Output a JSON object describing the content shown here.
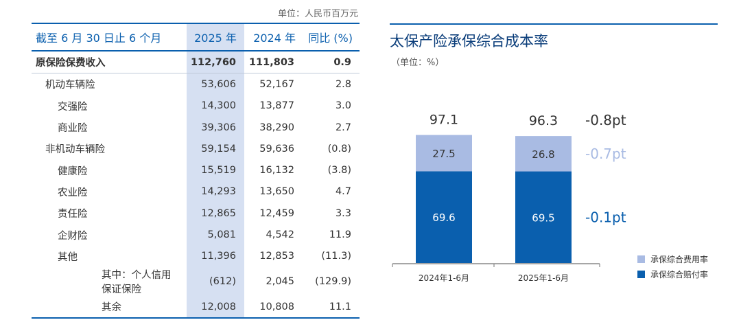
{
  "left_table": {
    "unit": "单位：人民币百万元",
    "header": {
      "name": "截至 6 月 30 日止 6 个月",
      "y2025": "2025 年",
      "y2024": "2024 年",
      "yoy": "同比 (%)"
    },
    "rows": [
      {
        "name": "原保险保费收入",
        "v2025": "112,760",
        "v2024": "111,803",
        "yoy": "0.9",
        "level": 0
      },
      {
        "name": "机动车辆险",
        "v2025": "53,606",
        "v2024": "52,167",
        "yoy": "2.8",
        "level": 1
      },
      {
        "name": "交强险",
        "v2025": "14,300",
        "v2024": "13,877",
        "yoy": "3.0",
        "level": 2
      },
      {
        "name": "商业险",
        "v2025": "39,306",
        "v2024": "38,290",
        "yoy": "2.7",
        "level": 2
      },
      {
        "name": "非机动车辆险",
        "v2025": "59,154",
        "v2024": "59,636",
        "yoy": "(0.8)",
        "level": 1
      },
      {
        "name": "健康险",
        "v2025": "15,519",
        "v2024": "16,132",
        "yoy": "(3.8)",
        "level": 2
      },
      {
        "name": "农业险",
        "v2025": "14,293",
        "v2024": "13,650",
        "yoy": "4.7",
        "level": 2
      },
      {
        "name": "责任险",
        "v2025": "12,865",
        "v2024": "12,459",
        "yoy": "3.3",
        "level": 2
      },
      {
        "name": "企财险",
        "v2025": "5,081",
        "v2024": "4,542",
        "yoy": "11.9",
        "level": 2
      },
      {
        "name": "其他",
        "v2025": "11,396",
        "v2024": "12,853",
        "yoy": "(11.3)",
        "level": 2
      },
      {
        "name": "其中：个人信用保证保险",
        "v2025": "(612)",
        "v2024": "2,045",
        "yoy": "(129.9)",
        "level": 3
      },
      {
        "name": "其余",
        "v2025": "12,008",
        "v2024": "10,808",
        "yoy": "11.1",
        "level": 4
      }
    ]
  },
  "chart_data": {
    "type": "bar",
    "stacked": true,
    "title": "太保产险承保综合成本率",
    "unit": "（单位：%）",
    "categories": [
      "2024年1-6月",
      "2025年1-6月"
    ],
    "series": [
      {
        "name": "承保综合赔付率",
        "values": [
          69.6,
          69.5
        ],
        "color": "#0A5FAE",
        "label_color": "#ffffff"
      },
      {
        "name": "承保综合费用率",
        "values": [
          27.5,
          26.8
        ],
        "color": "#A9BBE3",
        "label_color": "#333333"
      }
    ],
    "totals": [
      97.1,
      96.3
    ],
    "annotations": [
      {
        "text": "-0.8pt",
        "color": "#333333",
        "ref": "total"
      },
      {
        "text": "-0.7pt",
        "color": "#A9BBE3",
        "ref": "承保综合费用率"
      },
      {
        "text": "-0.1pt",
        "color": "#0A5FAE",
        "ref": "承保综合赔付率"
      }
    ],
    "legend": [
      "承保综合费用率",
      "承保综合赔付率"
    ],
    "legend_position": "bottom-right",
    "axis_color": "#888888",
    "grid": false
  }
}
